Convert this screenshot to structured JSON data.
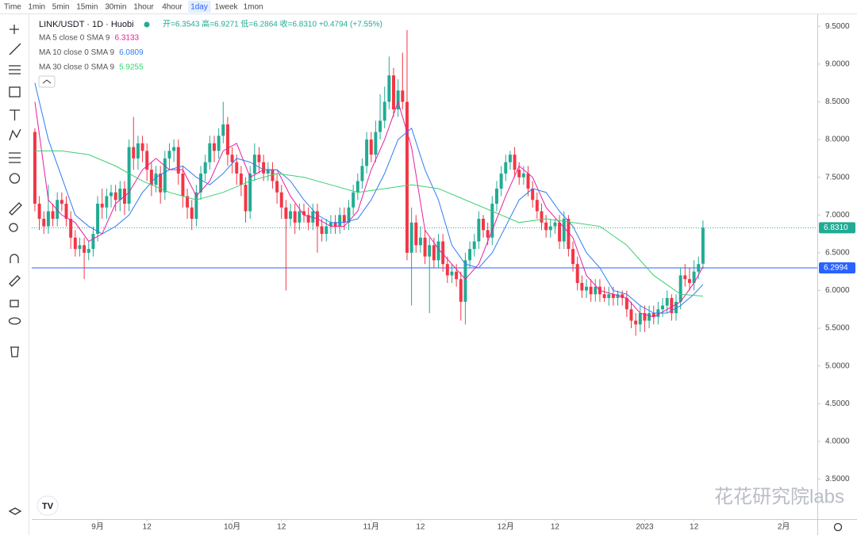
{
  "toolbar": {
    "intervals": [
      "Time",
      "1min",
      "5min",
      "15min",
      "30min",
      "1hour",
      "4hour",
      "1day",
      "1week",
      "1mon"
    ],
    "selected": 7
  },
  "watermark": "花花研究院labs",
  "chart_data": {
    "type": "candlestick",
    "title": "LINK/USDT · 1D · Huobi",
    "ohlc_text": "开=6.3543 高=6.9271 低=6.2864 收=6.8310 +0.4794 (+7.55%)",
    "up_color": "#22ab94",
    "down_color": "#f23645",
    "x": [
      0,
      1,
      2,
      3,
      4,
      5,
      6,
      7,
      8,
      9,
      10,
      11,
      12,
      13,
      14,
      15,
      16,
      17,
      18,
      19,
      20,
      21,
      22,
      23,
      24,
      25,
      26,
      27,
      28,
      29,
      30,
      31,
      32,
      33,
      34,
      35,
      36,
      37,
      38,
      39,
      40,
      41,
      42,
      43,
      44,
      45,
      46,
      47,
      48,
      49,
      50,
      51,
      52,
      53,
      54,
      55,
      56,
      57,
      58,
      59,
      60,
      61,
      62,
      63,
      64,
      65,
      66,
      67,
      68,
      69,
      70,
      71,
      72,
      73,
      74,
      75,
      76,
      77,
      78,
      79,
      80,
      81,
      82,
      83,
      84,
      85,
      86,
      87,
      88,
      89,
      90,
      91,
      92,
      93,
      94,
      95,
      96,
      97,
      98,
      99,
      100,
      101,
      102,
      103,
      104,
      105,
      106,
      107,
      108,
      109,
      110,
      111,
      112,
      113,
      114,
      115,
      116,
      117,
      118,
      119,
      120,
      121,
      122,
      123,
      124,
      125,
      126,
      127,
      128,
      129,
      130,
      131,
      132,
      133,
      134,
      135,
      136,
      137,
      138,
      139,
      140,
      141,
      142,
      143,
      144,
      145,
      146,
      147,
      148,
      149
    ],
    "open": [
      8.1,
      7.15,
      6.95,
      6.85,
      7.05,
      6.95,
      7.2,
      7.15,
      6.95,
      6.7,
      6.55,
      6.6,
      6.5,
      6.55,
      6.75,
      7.15,
      7.1,
      7.25,
      7.3,
      7.2,
      7.35,
      7.15,
      7.9,
      7.75,
      7.95,
      7.85,
      7.6,
      7.4,
      7.55,
      7.3,
      7.75,
      7.85,
      7.9,
      7.55,
      7.25,
      7.1,
      6.95,
      7.3,
      7.55,
      7.7,
      7.95,
      7.85,
      8.05,
      8.2,
      7.8,
      7.7,
      7.55,
      7.4,
      7.05,
      7.55,
      7.8,
      7.7,
      7.55,
      7.6,
      7.45,
      7.3,
      7.1,
      6.95,
      7.05,
      6.9,
      7.05,
      7.0,
      6.9,
      7.05,
      6.85,
      6.75,
      6.85,
      6.9,
      6.85,
      7.0,
      6.9,
      7.1,
      7.3,
      7.45,
      7.65,
      8.0,
      7.8,
      8.1,
      8.25,
      8.5,
      8.85,
      8.4,
      8.65,
      8.5,
      6.5,
      6.9,
      6.6,
      6.7,
      6.45,
      6.6,
      6.4,
      6.65,
      6.35,
      6.2,
      6.25,
      6.15,
      5.85,
      6.4,
      6.55,
      6.65,
      6.95,
      6.8,
      6.7,
      7.15,
      7.35,
      7.55,
      7.7,
      7.8,
      7.6,
      7.5,
      7.55,
      7.35,
      7.2,
      7.05,
      6.9,
      6.8,
      6.85,
      6.9,
      6.65,
      6.95,
      6.55,
      6.35,
      6.1,
      6.0,
      6.05,
      5.95,
      6.05,
      5.95,
      5.9,
      5.95,
      5.9,
      5.95,
      5.9,
      5.75,
      5.6,
      5.55,
      5.7,
      5.6,
      5.7,
      5.65,
      5.75,
      5.8,
      5.9,
      5.7,
      5.85,
      6.2,
      6.15,
      6.1,
      6.25,
      6.3543
    ],
    "high": [
      8.15,
      7.25,
      7.05,
      7.4,
      7.15,
      7.3,
      7.3,
      7.25,
      7.05,
      6.8,
      6.7,
      6.7,
      6.65,
      6.85,
      7.25,
      7.35,
      7.35,
      7.4,
      7.4,
      7.45,
      7.45,
      8.0,
      8.3,
      8.05,
      8.05,
      7.95,
      7.7,
      7.65,
      7.65,
      7.85,
      7.95,
      8.0,
      8.0,
      7.65,
      7.35,
      7.2,
      7.4,
      7.65,
      7.8,
      8.05,
      8.05,
      8.15,
      8.5,
      8.3,
      7.9,
      7.8,
      7.65,
      7.5,
      7.65,
      7.95,
      7.9,
      7.8,
      7.7,
      7.7,
      7.55,
      7.4,
      7.2,
      7.15,
      7.15,
      7.15,
      7.15,
      7.1,
      7.15,
      7.15,
      6.95,
      6.95,
      7.0,
      7.0,
      7.1,
      7.1,
      7.2,
      7.4,
      7.55,
      7.75,
      8.1,
      8.1,
      8.25,
      8.6,
      8.7,
      9.1,
      8.95,
      8.8,
      9.15,
      9.45,
      7.1,
      7.0,
      6.85,
      6.8,
      6.7,
      6.7,
      6.75,
      6.75,
      6.45,
      6.35,
      6.35,
      6.25,
      6.5,
      6.65,
      6.75,
      7.05,
      7.0,
      6.9,
      7.25,
      7.45,
      7.65,
      7.8,
      7.85,
      7.9,
      7.7,
      7.65,
      7.65,
      7.45,
      7.3,
      7.15,
      7.0,
      6.95,
      6.95,
      7.0,
      7.05,
      7.0,
      6.65,
      6.45,
      6.2,
      6.15,
      6.15,
      6.15,
      6.15,
      6.05,
      6.05,
      6.05,
      6.0,
      6.0,
      6.0,
      5.85,
      5.7,
      5.8,
      5.8,
      5.8,
      5.8,
      5.85,
      5.9,
      6.0,
      5.95,
      5.95,
      6.3,
      6.35,
      6.3,
      6.4,
      6.45,
      6.9271
    ],
    "low": [
      7.05,
      6.8,
      6.75,
      6.75,
      6.85,
      6.85,
      7.05,
      6.85,
      6.55,
      6.45,
      6.45,
      6.15,
      6.4,
      6.45,
      6.65,
      6.95,
      6.95,
      7.1,
      7.05,
      7.05,
      7.0,
      7.05,
      7.6,
      7.6,
      7.7,
      7.45,
      7.25,
      7.3,
      7.15,
      7.2,
      7.6,
      7.7,
      7.4,
      7.1,
      6.95,
      6.8,
      6.85,
      7.2,
      7.45,
      7.6,
      7.7,
      7.75,
      7.95,
      7.65,
      7.55,
      7.4,
      7.25,
      6.9,
      6.95,
      7.45,
      7.55,
      7.45,
      7.45,
      7.35,
      7.15,
      6.95,
      6.0,
      6.85,
      6.75,
      6.8,
      6.9,
      6.8,
      6.8,
      6.5,
      6.65,
      6.65,
      6.75,
      6.75,
      6.75,
      6.8,
      6.8,
      7.0,
      7.2,
      7.35,
      7.55,
      7.7,
      7.7,
      8.0,
      8.15,
      8.4,
      8.3,
      8.3,
      8.4,
      6.4,
      5.8,
      6.5,
      6.5,
      6.35,
      5.7,
      6.3,
      6.3,
      6.25,
      6.1,
      6.1,
      6.05,
      5.6,
      5.55,
      6.3,
      6.45,
      6.55,
      6.7,
      6.6,
      6.6,
      7.05,
      7.25,
      7.45,
      7.6,
      7.5,
      7.4,
      7.4,
      7.25,
      7.1,
      6.95,
      6.8,
      6.7,
      6.7,
      6.75,
      6.55,
      6.55,
      6.45,
      6.25,
      6.0,
      5.9,
      5.9,
      5.85,
      5.85,
      5.85,
      5.85,
      5.8,
      5.8,
      5.8,
      5.8,
      5.65,
      5.5,
      5.4,
      5.45,
      5.45,
      5.5,
      5.55,
      5.55,
      5.65,
      5.7,
      5.6,
      5.6,
      5.75,
      6.05,
      6.0,
      6.0,
      6.15,
      6.2864
    ],
    "close": [
      7.15,
      6.95,
      6.85,
      7.05,
      6.95,
      7.2,
      7.15,
      6.95,
      6.7,
      6.55,
      6.6,
      6.5,
      6.55,
      6.75,
      7.15,
      7.1,
      7.25,
      7.3,
      7.2,
      7.35,
      7.15,
      7.9,
      7.75,
      7.95,
      7.85,
      7.6,
      7.4,
      7.55,
      7.3,
      7.75,
      7.85,
      7.9,
      7.55,
      7.25,
      7.1,
      6.95,
      7.3,
      7.55,
      7.7,
      7.95,
      7.85,
      8.05,
      8.2,
      7.8,
      7.7,
      7.55,
      7.4,
      7.05,
      7.55,
      7.8,
      7.7,
      7.55,
      7.6,
      7.45,
      7.3,
      7.1,
      6.95,
      7.05,
      6.9,
      7.05,
      7.0,
      6.9,
      7.05,
      6.85,
      6.75,
      6.85,
      6.9,
      6.85,
      7.0,
      6.9,
      7.1,
      7.3,
      7.45,
      7.65,
      8.0,
      7.8,
      8.1,
      8.25,
      8.5,
      8.85,
      8.4,
      8.65,
      8.5,
      6.5,
      6.9,
      6.6,
      6.7,
      6.45,
      6.6,
      6.4,
      6.65,
      6.35,
      6.2,
      6.25,
      6.15,
      5.85,
      6.4,
      6.55,
      6.65,
      6.95,
      6.8,
      6.7,
      7.15,
      7.35,
      7.55,
      7.7,
      7.8,
      7.6,
      7.5,
      7.55,
      7.35,
      7.2,
      7.05,
      6.9,
      6.8,
      6.85,
      6.9,
      6.65,
      6.95,
      6.55,
      6.35,
      6.1,
      6.0,
      6.05,
      5.95,
      6.05,
      5.95,
      5.9,
      5.95,
      5.9,
      5.95,
      5.9,
      5.75,
      5.6,
      5.55,
      5.7,
      5.6,
      5.7,
      5.65,
      5.75,
      5.8,
      5.9,
      5.7,
      5.85,
      6.2,
      6.15,
      6.1,
      6.25,
      6.35,
      6.831
    ],
    "series": [
      {
        "name": "MA 5 close 0 SMA 9",
        "color": "#e91ea0",
        "x": [
          0,
          3,
          6,
          9,
          12,
          15,
          18,
          21,
          24,
          27,
          30,
          33,
          36,
          39,
          42,
          45,
          48,
          51,
          54,
          57,
          60,
          63,
          66,
          69,
          72,
          75,
          78,
          81,
          84,
          87,
          90,
          93,
          96,
          99,
          102,
          105,
          108,
          111,
          114,
          117,
          120,
          123,
          126,
          129,
          132,
          135,
          138,
          141,
          144,
          147,
          149
        ],
        "values": [
          8.5,
          7.2,
          7.0,
          6.9,
          6.65,
          6.75,
          7.15,
          7.3,
          7.6,
          7.75,
          7.6,
          7.6,
          7.25,
          7.45,
          7.85,
          7.95,
          7.5,
          7.6,
          7.6,
          7.25,
          7.0,
          6.95,
          6.85,
          6.85,
          7.05,
          7.6,
          8.0,
          8.5,
          7.9,
          6.8,
          6.55,
          6.35,
          6.15,
          6.35,
          6.8,
          7.25,
          7.65,
          7.5,
          7.1,
          6.9,
          6.7,
          6.2,
          6.0,
          5.95,
          5.9,
          5.7,
          5.65,
          5.75,
          5.85,
          6.1,
          6.3133
        ]
      },
      {
        "name": "MA 10 close 0 SMA 9",
        "color": "#2f7cf6",
        "x": [
          0,
          3,
          6,
          9,
          12,
          15,
          18,
          21,
          24,
          27,
          30,
          33,
          36,
          39,
          42,
          45,
          48,
          51,
          54,
          57,
          60,
          63,
          66,
          69,
          72,
          75,
          78,
          81,
          84,
          87,
          90,
          93,
          96,
          99,
          102,
          105,
          108,
          111,
          114,
          117,
          120,
          123,
          126,
          129,
          132,
          135,
          138,
          141,
          144,
          147,
          149
        ],
        "values": [
          8.75,
          8.0,
          7.5,
          7.0,
          6.85,
          6.75,
          6.85,
          7.0,
          7.3,
          7.5,
          7.6,
          7.65,
          7.5,
          7.4,
          7.55,
          7.75,
          7.7,
          7.6,
          7.6,
          7.45,
          7.2,
          7.0,
          6.9,
          6.9,
          6.95,
          7.2,
          7.55,
          8.0,
          8.15,
          7.6,
          7.2,
          6.6,
          6.35,
          6.3,
          6.5,
          6.85,
          7.2,
          7.35,
          7.3,
          7.05,
          6.85,
          6.5,
          6.3,
          6.0,
          5.95,
          5.8,
          5.7,
          5.7,
          5.8,
          5.95,
          6.0809
        ]
      },
      {
        "name": "MA 30 close 0 SMA 9",
        "color": "#3bd16f",
        "x": [
          0,
          6,
          12,
          18,
          24,
          30,
          36,
          42,
          48,
          54,
          60,
          66,
          72,
          78,
          84,
          90,
          96,
          102,
          108,
          114,
          120,
          126,
          132,
          138,
          144,
          149
        ],
        "values": [
          7.85,
          7.85,
          7.8,
          7.65,
          7.45,
          7.3,
          7.2,
          7.3,
          7.45,
          7.55,
          7.5,
          7.4,
          7.3,
          7.35,
          7.4,
          7.35,
          7.2,
          7.05,
          6.9,
          6.95,
          6.9,
          6.85,
          6.6,
          6.2,
          5.95,
          5.9255
        ]
      }
    ],
    "price_lines": [
      {
        "value": 6.831,
        "label": "6.8310",
        "color": "#22ab94",
        "style": "dotted"
      },
      {
        "value": 6.2994,
        "label": "6.2994",
        "color": "#2962ff",
        "style": "solid"
      }
    ],
    "xlim": [
      -0.7,
      174.5
    ],
    "xticks": [
      {
        "value": 14,
        "label": "9月"
      },
      {
        "value": 25,
        "label": "12"
      },
      {
        "value": 44,
        "label": "10月"
      },
      {
        "value": 55,
        "label": "12"
      },
      {
        "value": 75,
        "label": "11月"
      },
      {
        "value": 86,
        "label": "12"
      },
      {
        "value": 105,
        "label": "12月"
      },
      {
        "value": 116,
        "label": "12"
      },
      {
        "value": 136,
        "label": "2023"
      },
      {
        "value": 147,
        "label": "12"
      },
      {
        "value": 167,
        "label": "2月"
      }
    ],
    "ylim": [
      2.97,
      9.66
    ],
    "yticks": [
      {
        "value": 3.5,
        "label": "3.5000"
      },
      {
        "value": 4,
        "label": "4.0000"
      },
      {
        "value": 4.5,
        "label": "4.5000"
      },
      {
        "value": 5,
        "label": "5.0000"
      },
      {
        "value": 5.5,
        "label": "5.5000"
      },
      {
        "value": 6,
        "label": "6.0000"
      },
      {
        "value": 6.5,
        "label": "6.5000"
      },
      {
        "value": 7,
        "label": "7.0000"
      },
      {
        "value": 7.5,
        "label": "7.5000"
      },
      {
        "value": 8,
        "label": "8.0000"
      },
      {
        "value": 8.5,
        "label": "8.5000"
      },
      {
        "value": 9,
        "label": "9.0000"
      },
      {
        "value": 9.5,
        "label": "9.5000"
      }
    ],
    "grid": false
  }
}
